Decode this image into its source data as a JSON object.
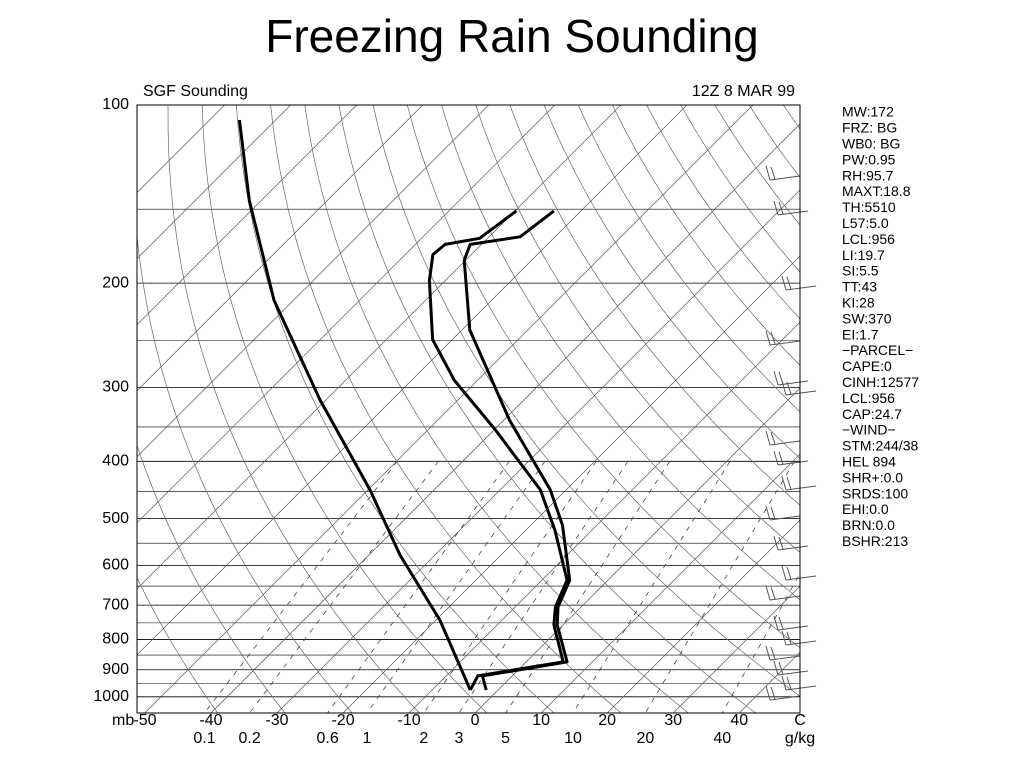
{
  "title": "Freezing Rain Sounding",
  "chart_data": {
    "type": "skewt",
    "subtitle_left": "SGF Sounding",
    "subtitle_right": "12Z  8 MAR 99",
    "y_unit": "mb",
    "x_unit": "C",
    "mixing_ratio_unit": "g/kg",
    "log_y": true,
    "ylim": [
      100,
      1065
    ],
    "yticks": [
      100,
      200,
      300,
      400,
      500,
      600,
      700,
      800,
      900,
      1000
    ],
    "xlim": [
      -51.2,
      49.2
    ],
    "xticks": [
      -50,
      -40,
      -30,
      -20,
      -10,
      0,
      10,
      20,
      30,
      40
    ],
    "mixing_ratio_ticks": [
      0.1,
      0.2,
      0.6,
      1.0,
      2.0,
      3.0,
      5.0,
      10.0,
      20.0,
      40.0
    ],
    "series": [
      {
        "color": "#000000",
        "y": [
          974,
          922,
          873,
          756,
          705,
          635,
          513,
          447,
          341,
          240,
          183,
          172,
          167,
          151
        ],
        "values": [
          -1.8,
          -4.5,
          6.2,
          -0.9,
          -3.5,
          -5.8,
          -15.2,
          -22.4,
          -39.1,
          -58.8,
          -70.2,
          -71.7,
          -65.3,
          -64.1
        ]
      },
      {
        "color": "#000000",
        "y": [
          974,
          922,
          873,
          756,
          705,
          635,
          523,
          447,
          354,
          292,
          249,
          198,
          179,
          172,
          168,
          151
        ],
        "values": [
          -4.2,
          -5.2,
          5.6,
          -1.4,
          -3.9,
          -6.2,
          -15.6,
          -23.9,
          -39.8,
          -53.5,
          -63.0,
          -72.4,
          -75.8,
          -75.5,
          -71.2,
          -69.8
        ]
      },
      {
        "color": "#000000",
        "y": [
          974,
          742,
          576,
          447,
          315,
          214,
          145,
          106
        ],
        "values": [
          -4.2,
          -19.4,
          -35.3,
          -49.7,
          -70.9,
          -92.9,
          -111.8,
          -125.5
        ]
      }
    ],
    "indices": [
      "MW:172",
      "FRZ: BG",
      "WB0: BG",
      "PW:0.95",
      "RH:95.7",
      "MAXT:18.8",
      "TH:5510",
      "L57:5.0",
      "LCL:956",
      "LI:19.7",
      "SI:5.5",
      "TT:43",
      "KI:28",
      "SW:370",
      "EI:1.7",
      "−PARCEL−",
      "CAPE:0",
      "CINH:12577",
      "LCL:956",
      "CAP:24.7",
      "−WIND−",
      "STM:244/38",
      "HEL 894",
      "SHR+:0.0",
      "SRDS:100",
      "EHI:0.0",
      "BRN:0.0",
      "BSHR:213"
    ]
  }
}
